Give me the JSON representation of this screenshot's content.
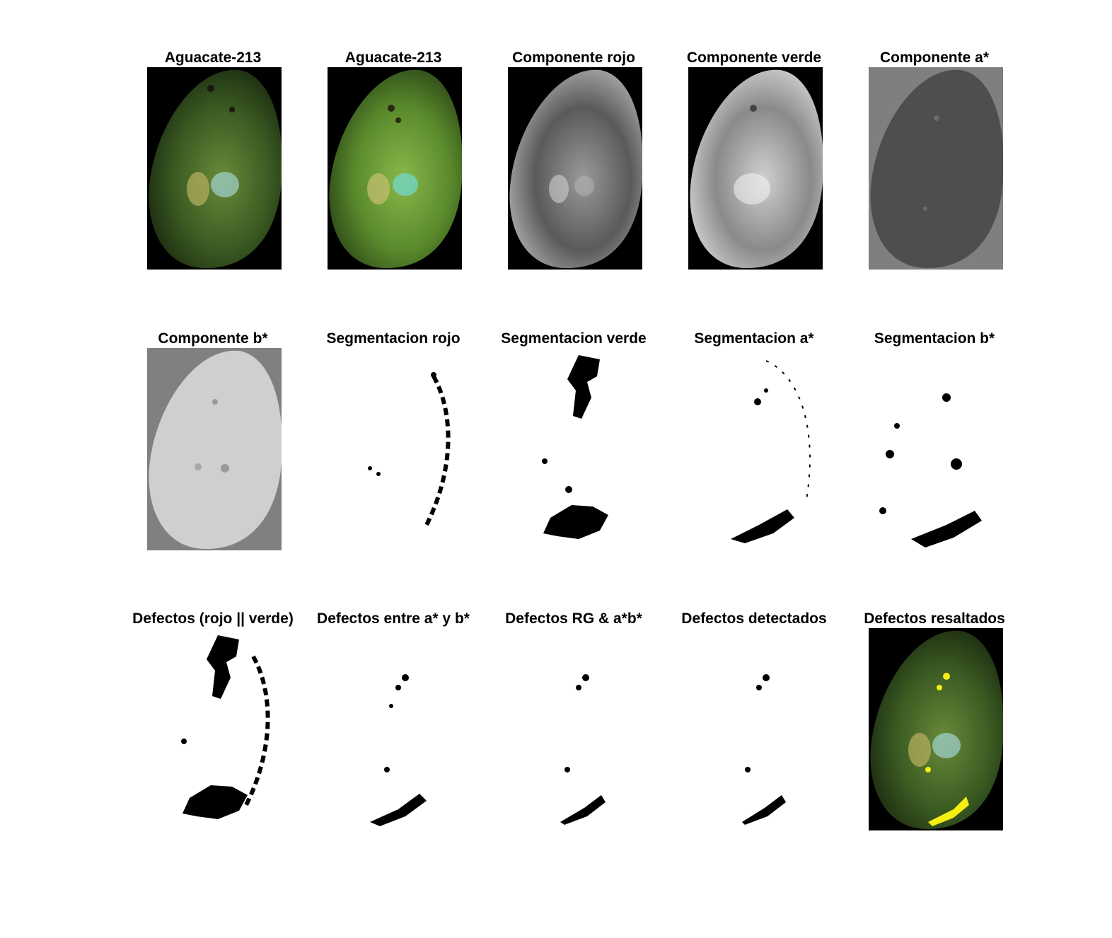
{
  "panels": [
    {
      "title": "Aguacate-213",
      "kind": "photo"
    },
    {
      "title": "Aguacate-213",
      "kind": "filtered"
    },
    {
      "title": "Componente rojo",
      "kind": "gray-black"
    },
    {
      "title": "Componente verde",
      "kind": "gray-black-light"
    },
    {
      "title": "Componente a*",
      "kind": "gray-on-gray-dark"
    },
    {
      "title": "Componente b*",
      "kind": "gray-on-gray-light"
    },
    {
      "title": "Segmentacion rojo",
      "kind": "mask"
    },
    {
      "title": "Segmentacion verde",
      "kind": "mask"
    },
    {
      "title": "Segmentacion a*",
      "kind": "mask"
    },
    {
      "title": "Segmentacion b*",
      "kind": "mask"
    },
    {
      "title": "Defectos (rojo || verde)",
      "kind": "mask"
    },
    {
      "title": "Defectos entre a* y b*",
      "kind": "mask"
    },
    {
      "title": "Defectos RG & a*b*",
      "kind": "mask"
    },
    {
      "title": "Defectos detectados",
      "kind": "mask"
    },
    {
      "title": "Defectos resaltados",
      "kind": "highlighted"
    }
  ],
  "colors": {
    "highlight": "#f5ee10",
    "avocado": "#2f4a1c",
    "background": "#000000"
  }
}
